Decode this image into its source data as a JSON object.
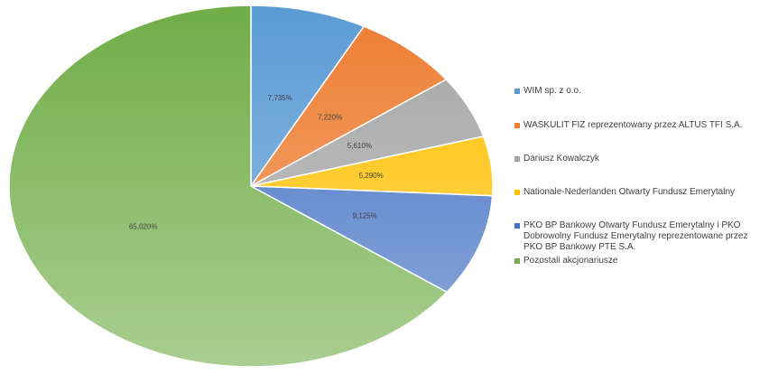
{
  "chart_data": {
    "type": "pie",
    "categories": [
      "WIM sp. z o.o.",
      "WASKULIT FIZ reprezentowany przez ALTUS TFI S.A.",
      "Dariusz Kowalczyk",
      "Nationale-Nederlanden Otwarty Fundusz Emerytalny",
      "PKO BP Bankowy Otwarty Fundusz Emerytalny i PKO Dobrowolny Fundusz Emerytalny reprezentowane przez PKO BP Bankowy PTE S.A.",
      "Pozostali akcjonariusze"
    ],
    "values": [
      7.735,
      7.22,
      5.61,
      5.29,
      9.125,
      65.02
    ],
    "value_labels": [
      "7,735%",
      "7,220%",
      "5,610%",
      "5,290%",
      "9,125%",
      "65,020%"
    ],
    "colors": [
      "#5b9bd5",
      "#ed7d31",
      "#a5a5a5",
      "#ffc000",
      "#4472c4",
      "#70ad47"
    ],
    "legend": "right"
  }
}
